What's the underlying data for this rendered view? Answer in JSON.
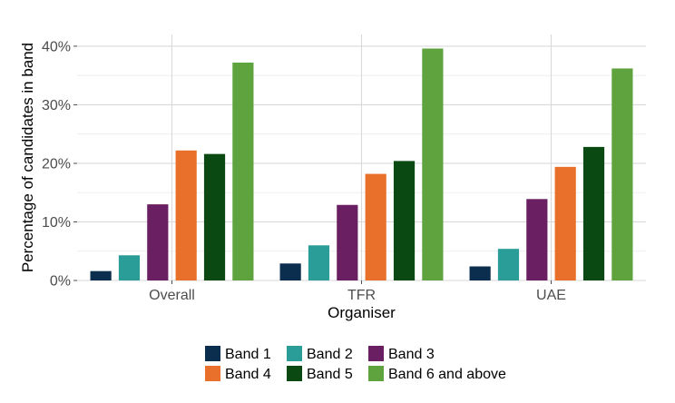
{
  "chart_data": {
    "type": "bar",
    "xlabel": "Organiser",
    "ylabel": "Percentage of candidates in band",
    "categories": [
      "Overall",
      "TFR",
      "UAE"
    ],
    "ylim": [
      0,
      42
    ],
    "yticks": [
      0,
      10,
      20,
      30,
      40
    ],
    "ytick_labels": [
      "0%",
      "10%",
      "20%",
      "30%",
      "40%"
    ],
    "grid": true,
    "legend_position": "bottom",
    "series": [
      {
        "name": "Band 1",
        "color": "#0b2e4f",
        "values": [
          1.6,
          2.9,
          2.4
        ]
      },
      {
        "name": "Band 2",
        "color": "#2a9d98",
        "values": [
          4.3,
          6.0,
          5.4
        ]
      },
      {
        "name": "Band 3",
        "color": "#6b1f63",
        "values": [
          13.0,
          12.9,
          13.9
        ]
      },
      {
        "name": "Band 4",
        "color": "#e8702a",
        "values": [
          22.2,
          18.2,
          19.4
        ]
      },
      {
        "name": "Band 5",
        "color": "#0a4a12",
        "values": [
          21.6,
          20.4,
          22.8
        ]
      },
      {
        "name": "Band 6 and above",
        "color": "#5fa33f",
        "values": [
          37.2,
          39.6,
          36.2
        ]
      }
    ]
  }
}
